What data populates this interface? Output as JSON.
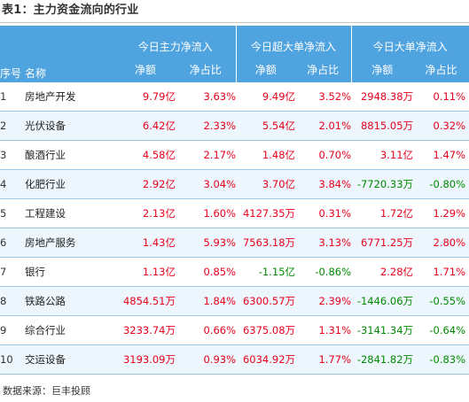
{
  "title": "表1：主力资金流向的行业",
  "table": {
    "header": {
      "index": "序号",
      "name": "名称",
      "groups": [
        "今日主力净流入",
        "今日超大单净流入",
        "今日大单净流入"
      ],
      "sub": [
        "净额",
        "净占比",
        "净额",
        "净占比",
        "净额",
        "净占比"
      ]
    },
    "rows": [
      {
        "idx": "1",
        "name": "房地产开发",
        "cells": [
          {
            "v": "9.79亿",
            "c": "red"
          },
          {
            "v": "3.63%",
            "c": "red"
          },
          {
            "v": "9.49亿",
            "c": "red"
          },
          {
            "v": "3.52%",
            "c": "red"
          },
          {
            "v": "2948.38万",
            "c": "red"
          },
          {
            "v": "0.11%",
            "c": "red"
          }
        ]
      },
      {
        "idx": "2",
        "name": "光伏设备",
        "cells": [
          {
            "v": "6.42亿",
            "c": "red"
          },
          {
            "v": "2.33%",
            "c": "red"
          },
          {
            "v": "5.54亿",
            "c": "red"
          },
          {
            "v": "2.01%",
            "c": "red"
          },
          {
            "v": "8815.05万",
            "c": "red"
          },
          {
            "v": "0.32%",
            "c": "red"
          }
        ]
      },
      {
        "idx": "3",
        "name": "酿酒行业",
        "cells": [
          {
            "v": "4.58亿",
            "c": "red"
          },
          {
            "v": "2.17%",
            "c": "red"
          },
          {
            "v": "1.48亿",
            "c": "red"
          },
          {
            "v": "0.70%",
            "c": "red"
          },
          {
            "v": "3.11亿",
            "c": "red"
          },
          {
            "v": "1.47%",
            "c": "red"
          }
        ]
      },
      {
        "idx": "4",
        "name": "化肥行业",
        "cells": [
          {
            "v": "2.92亿",
            "c": "red"
          },
          {
            "v": "3.04%",
            "c": "red"
          },
          {
            "v": "3.70亿",
            "c": "red"
          },
          {
            "v": "3.84%",
            "c": "red"
          },
          {
            "v": "-7720.33万",
            "c": "green"
          },
          {
            "v": "-0.80%",
            "c": "green"
          }
        ]
      },
      {
        "idx": "5",
        "name": "工程建设",
        "cells": [
          {
            "v": "2.13亿",
            "c": "red"
          },
          {
            "v": "1.60%",
            "c": "red"
          },
          {
            "v": "4127.35万",
            "c": "red"
          },
          {
            "v": "0.31%",
            "c": "red"
          },
          {
            "v": "1.72亿",
            "c": "red"
          },
          {
            "v": "1.29%",
            "c": "red"
          }
        ]
      },
      {
        "idx": "6",
        "name": "房地产服务",
        "cells": [
          {
            "v": "1.43亿",
            "c": "red"
          },
          {
            "v": "5.93%",
            "c": "red"
          },
          {
            "v": "7563.18万",
            "c": "red"
          },
          {
            "v": "3.13%",
            "c": "red"
          },
          {
            "v": "6771.25万",
            "c": "red"
          },
          {
            "v": "2.80%",
            "c": "red"
          }
        ]
      },
      {
        "idx": "7",
        "name": "银行",
        "cells": [
          {
            "v": "1.13亿",
            "c": "red"
          },
          {
            "v": "0.85%",
            "c": "red"
          },
          {
            "v": "-1.15亿",
            "c": "green"
          },
          {
            "v": "-0.86%",
            "c": "green"
          },
          {
            "v": "2.28亿",
            "c": "red"
          },
          {
            "v": "1.71%",
            "c": "red"
          }
        ]
      },
      {
        "idx": "8",
        "name": "铁路公路",
        "cells": [
          {
            "v": "4854.51万",
            "c": "red"
          },
          {
            "v": "1.84%",
            "c": "red"
          },
          {
            "v": "6300.57万",
            "c": "red"
          },
          {
            "v": "2.39%",
            "c": "red"
          },
          {
            "v": "-1446.06万",
            "c": "green"
          },
          {
            "v": "-0.55%",
            "c": "green"
          }
        ]
      },
      {
        "idx": "9",
        "name": "综合行业",
        "cells": [
          {
            "v": "3233.74万",
            "c": "red"
          },
          {
            "v": "0.66%",
            "c": "red"
          },
          {
            "v": "6375.08万",
            "c": "red"
          },
          {
            "v": "1.31%",
            "c": "red"
          },
          {
            "v": "-3141.34万",
            "c": "green"
          },
          {
            "v": "-0.64%",
            "c": "green"
          }
        ]
      },
      {
        "idx": "10",
        "name": "交运设备",
        "cells": [
          {
            "v": "3193.09万",
            "c": "red"
          },
          {
            "v": "0.93%",
            "c": "red"
          },
          {
            "v": "6034.92万",
            "c": "red"
          },
          {
            "v": "1.77%",
            "c": "red"
          },
          {
            "v": "-2841.82万",
            "c": "green"
          },
          {
            "v": "-0.83%",
            "c": "green"
          }
        ]
      }
    ]
  },
  "source": "数据来源：巨丰投顾",
  "colors": {
    "header_bg": "#4fa3df",
    "positive": "#e8001c",
    "negative": "#008a00",
    "stripe": "#ecf6fc"
  }
}
